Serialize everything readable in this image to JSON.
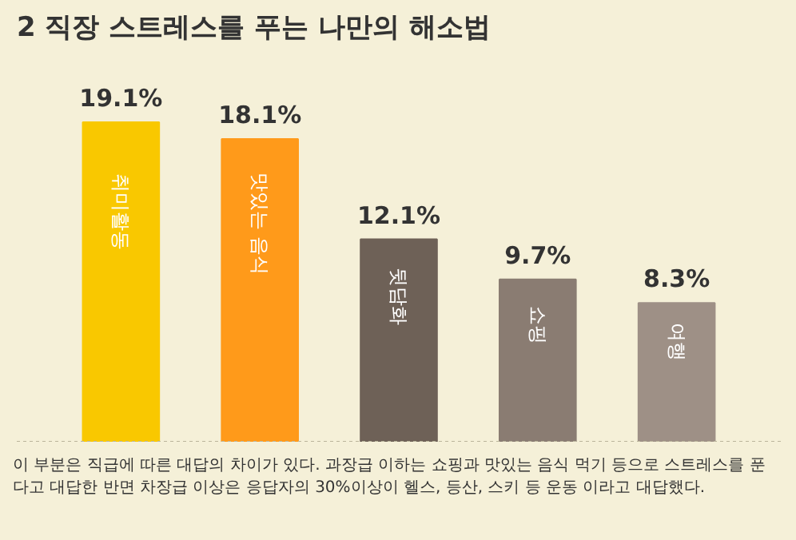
{
  "chart_data": {
    "type": "bar",
    "title": "2 직장 스트레스를 푸는 나만의 해소법",
    "categories": [
      "취미활동",
      "맛있는 음식",
      "뒷담화",
      "쇼핑",
      "여행"
    ],
    "values": [
      19.1,
      18.1,
      12.1,
      9.7,
      8.3
    ],
    "colors": [
      "#f9c800",
      "#ff9a1a",
      "#6e6157",
      "#8a7c72",
      "#9e9086"
    ],
    "value_labels": [
      "19.1%",
      "18.1%",
      "12.1%",
      "9.7%",
      "8.3%"
    ],
    "annotations": [
      "이 부분은 직급에 따른 대답의 차이가 있다. 과장급 이하는 쇼핑과 맛있는 음식 먹기 등으로 스트레스를 푼다고 대답한 반면 차장급 이상은 응답자의  30%이상이 헬스, 등산, 스키 등 운동 이라고 대답했다."
    ]
  }
}
